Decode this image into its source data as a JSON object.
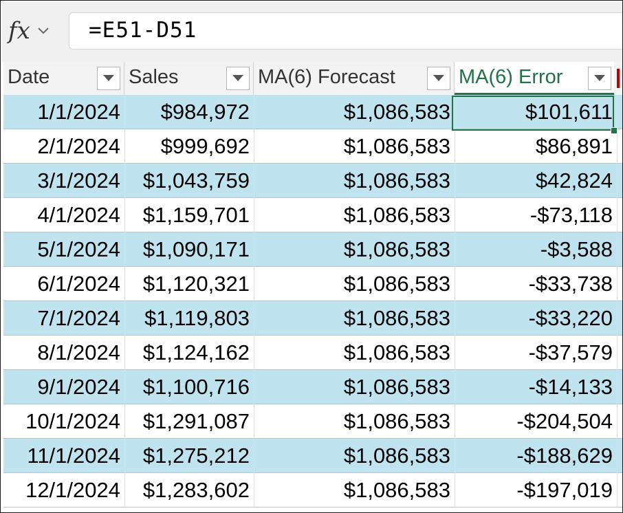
{
  "formula_bar": {
    "fx_icon": "fx",
    "formula": "=E51-D51"
  },
  "columns": [
    {
      "key": "date",
      "label": "Date"
    },
    {
      "key": "sales",
      "label": "Sales"
    },
    {
      "key": "forecast",
      "label": "MA(6) Forecast"
    },
    {
      "key": "error",
      "label": "MA(6) Error"
    }
  ],
  "rows": [
    {
      "date": "1/1/2024",
      "sales": "$984,972",
      "forecast": "$1,086,583",
      "error": "$101,611"
    },
    {
      "date": "2/1/2024",
      "sales": "$999,692",
      "forecast": "$1,086,583",
      "error": "$86,891"
    },
    {
      "date": "3/1/2024",
      "sales": "$1,043,759",
      "forecast": "$1,086,583",
      "error": "$42,824"
    },
    {
      "date": "4/1/2024",
      "sales": "$1,159,701",
      "forecast": "$1,086,583",
      "error": "-$73,118"
    },
    {
      "date": "5/1/2024",
      "sales": "$1,090,171",
      "forecast": "$1,086,583",
      "error": "-$3,588"
    },
    {
      "date": "6/1/2024",
      "sales": "$1,120,321",
      "forecast": "$1,086,583",
      "error": "-$33,738"
    },
    {
      "date": "7/1/2024",
      "sales": "$1,119,803",
      "forecast": "$1,086,583",
      "error": "-$33,220"
    },
    {
      "date": "8/1/2024",
      "sales": "$1,124,162",
      "forecast": "$1,086,583",
      "error": "-$37,579"
    },
    {
      "date": "9/1/2024",
      "sales": "$1,100,716",
      "forecast": "$1,086,583",
      "error": "-$14,133"
    },
    {
      "date": "10/1/2024",
      "sales": "$1,291,087",
      "forecast": "$1,086,583",
      "error": "-$204,504"
    },
    {
      "date": "11/1/2024",
      "sales": "$1,275,212",
      "forecast": "$1,086,583",
      "error": "-$188,629"
    },
    {
      "date": "12/1/2024",
      "sales": "$1,283,602",
      "forecast": "$1,086,583",
      "error": "-$197,019"
    }
  ],
  "colors": {
    "accent": "#217346",
    "band": "#bfe3ef",
    "band_line": "#8fd1e6"
  },
  "icons": {
    "function": "fx-icon",
    "chevron": "chevron-down-icon",
    "filter": "filter-dropdown-icon"
  }
}
